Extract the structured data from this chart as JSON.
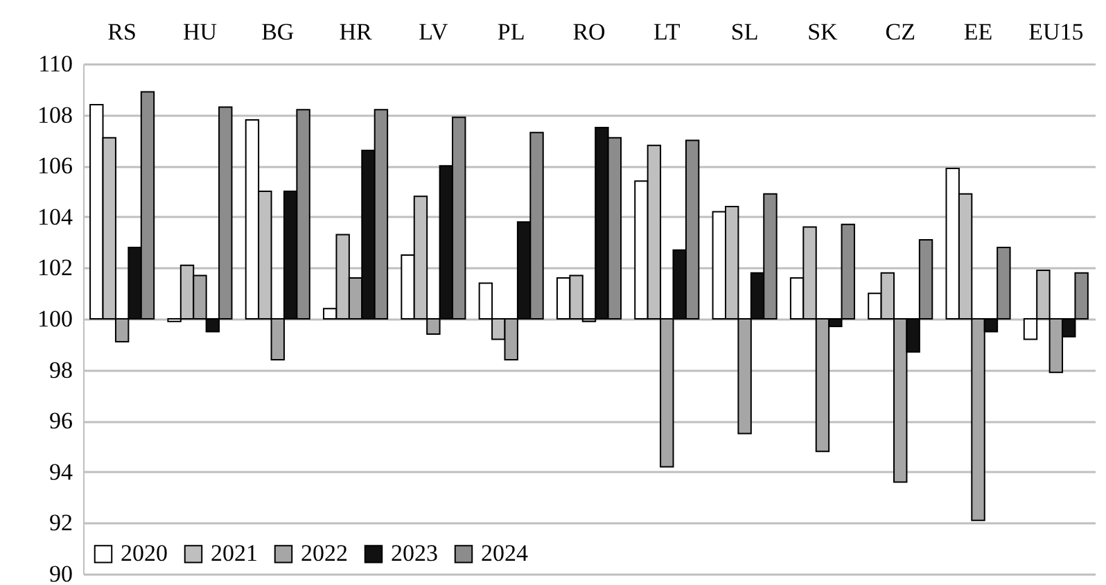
{
  "chart_data": {
    "type": "bar",
    "categories": [
      "RS",
      "HU",
      "BG",
      "HR",
      "LV",
      "PL",
      "RO",
      "LT",
      "SL",
      "SK",
      "CZ",
      "EE",
      "EU15"
    ],
    "series": [
      {
        "name": "2020",
        "color": "#ffffff",
        "base": [
          100,
          100,
          100,
          100,
          100,
          100,
          100,
          100,
          100,
          100,
          100,
          100,
          100
        ],
        "values": [
          8.4,
          -0.1,
          7.8,
          0.4,
          2.5,
          1.4,
          1.6,
          5.4,
          4.2,
          1.6,
          1.0,
          5.9,
          -0.8
        ]
      },
      {
        "name": "2021",
        "color": "#bfbfbf",
        "base": [
          100,
          100,
          100,
          100,
          100,
          100,
          100,
          100,
          100,
          100,
          100,
          100,
          100
        ],
        "values": [
          7.1,
          2.1,
          5.0,
          3.3,
          4.8,
          -0.8,
          1.7,
          6.8,
          4.4,
          3.6,
          1.8,
          4.9,
          1.9
        ]
      },
      {
        "name": "2022",
        "color": "#a6a6a6",
        "base": [
          100,
          100,
          100,
          100,
          100,
          100,
          100,
          100,
          100,
          100,
          100,
          100,
          100
        ],
        "values": [
          -0.9,
          1.7,
          -1.6,
          1.6,
          -0.6,
          -1.6,
          -0.1,
          -5.8,
          -4.5,
          -5.2,
          -6.4,
          -7.9,
          -2.1
        ]
      },
      {
        "name": "2023",
        "color": "#111111",
        "base": [
          100,
          100,
          100,
          100,
          100,
          100,
          100,
          100,
          100,
          100,
          100,
          100,
          100
        ],
        "values": [
          2.8,
          -0.5,
          5.0,
          6.6,
          6.0,
          3.8,
          7.5,
          2.7,
          1.8,
          -0.3,
          -1.3,
          -0.5,
          -0.7
        ]
      },
      {
        "name": "2024",
        "color": "#8c8c8c",
        "base": [
          100,
          100,
          100,
          100,
          100,
          100,
          100,
          100,
          100,
          100,
          100,
          100,
          100
        ],
        "values": [
          8.9,
          8.3,
          8.2,
          8.2,
          7.9,
          7.3,
          7.1,
          7.0,
          4.9,
          3.7,
          3.1,
          2.8,
          1.8
        ]
      }
    ],
    "ylim": [
      90,
      110
    ],
    "yticks": [
      90,
      92,
      94,
      96,
      98,
      100,
      102,
      104,
      106,
      108,
      110
    ],
    "grid": "y",
    "legend": "bottom left"
  }
}
